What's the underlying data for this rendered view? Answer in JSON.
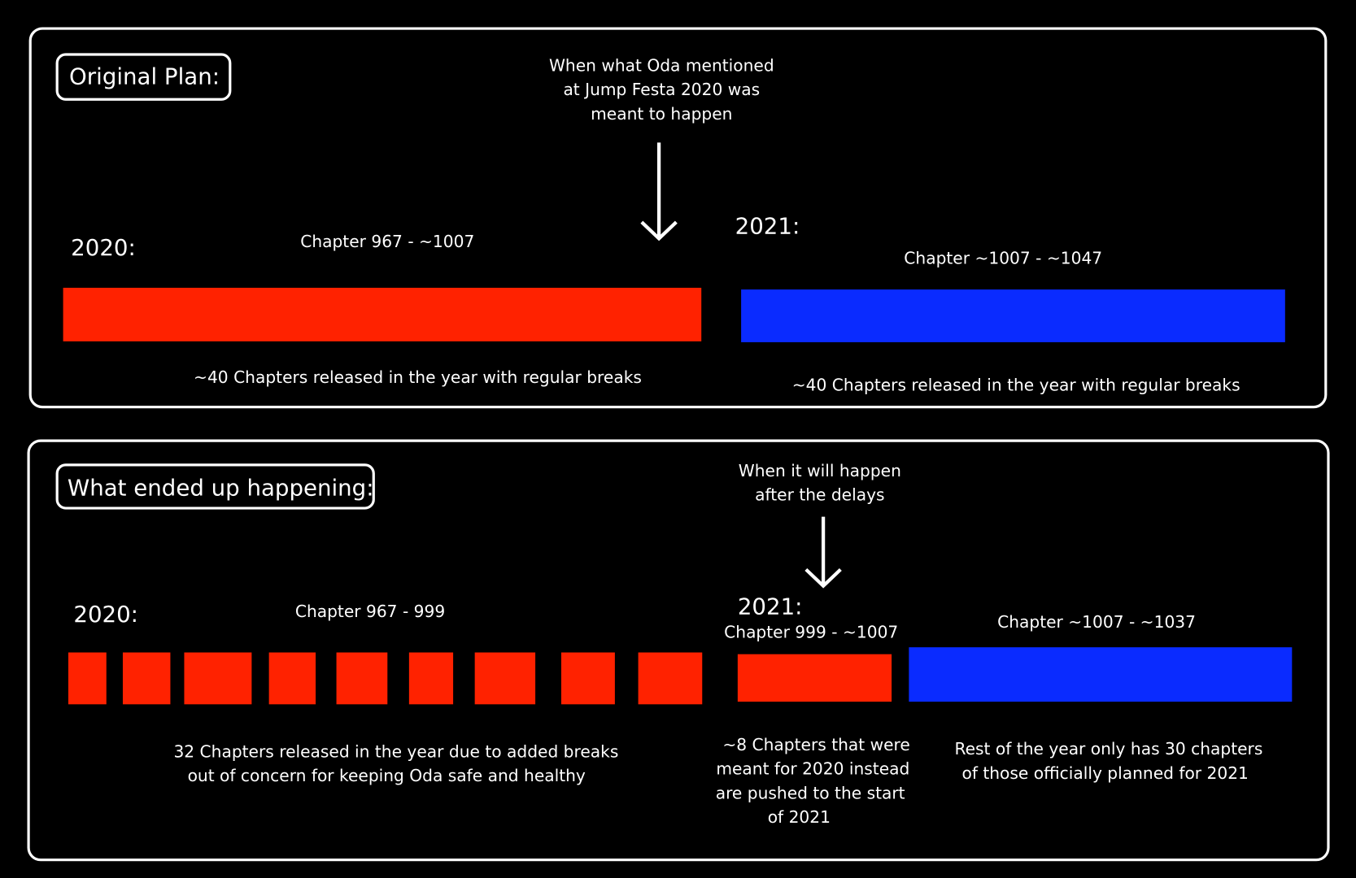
{
  "original_plan": {
    "title": "Original Plan:",
    "annotation": [
      "When what Oda mentioned",
      "at Jump Festa 2020 was",
      "meant to happen"
    ],
    "year_2020": {
      "label": "2020:",
      "chapters": "Chapter 967 - ~1007",
      "caption": "~40 Chapters released in the year with regular breaks"
    },
    "year_2021": {
      "label": "2021:",
      "chapters": "Chapter ~1007 - ~1047",
      "caption": "~40 Chapters released in the year with regular breaks"
    }
  },
  "what_happened": {
    "title": "What ended up happening:",
    "annotation": [
      "When it will happen",
      "after the delays"
    ],
    "year_2020": {
      "label": "2020:",
      "chapters": "Chapter 967 - 999",
      "caption": [
        "32  Chapters released in the year due to added breaks",
        "out of concern for keeping Oda safe and healthy"
      ]
    },
    "year_2021": {
      "label": "2021:",
      "delayed_chapters": "Chapter 999 - ~1007",
      "delayed_caption": [
        "~8 Chapters that were",
        "meant for 2020 instead",
        "are pushed to the start",
        "of 2021"
      ],
      "chapters": "Chapter ~1007 - ~1037",
      "caption": [
        "Rest of the year only has 30 chapters",
        "of those officially planned for 2021"
      ]
    }
  }
}
